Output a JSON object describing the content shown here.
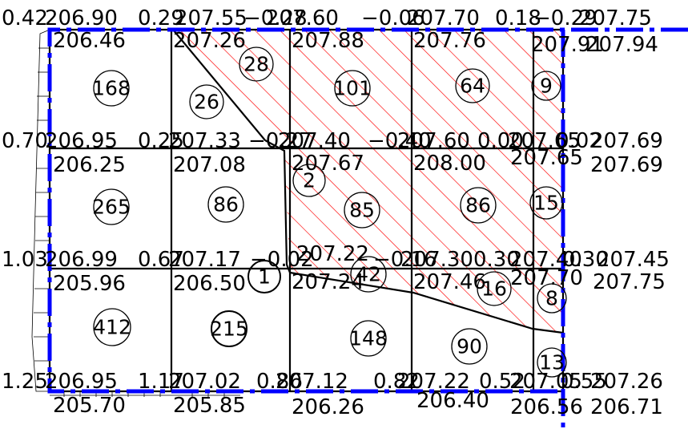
{
  "grid_labels": {
    "r1_design": [
      "0.42",
      "206.90",
      "0.29",
      "207.55",
      "−0.28",
      "207.60",
      "−0.06",
      "207.70",
      "0.18",
      "−0.29",
      "207.75"
    ],
    "r1_natural": [
      "206.46",
      "207.26",
      "207.88",
      "207.76",
      "207.91",
      "207.94"
    ],
    "r2_design": [
      "0.70",
      "206.95",
      "0.25",
      "207.33",
      "−0.27",
      "207.40",
      "−0.40",
      "207.60",
      "0.00",
      "207.65",
      "0.02",
      "207.69"
    ],
    "r2_natural": [
      "206.25",
      "207.08",
      "207.67",
      "208.00",
      "207.65",
      "207.69"
    ],
    "r3_design": [
      "1.03",
      "206.99",
      "0.67",
      "207.17",
      "−0.02",
      "207.22",
      "−0.16",
      "207.30",
      "0.30",
      "207.40",
      "0.30",
      "207.45"
    ],
    "r3_natural": [
      "205.96",
      "206.50",
      "207.24",
      "207.46",
      "207.70",
      "207.75"
    ],
    "r4_design": [
      "1.25",
      "206.95",
      "1.17",
      "207.02",
      "0.86",
      "207.12",
      "0.82",
      "207.22",
      "0.52",
      "207.05",
      "0.55",
      "207.26"
    ],
    "r4_natural": [
      "205.70",
      "205.85",
      "206.26",
      "206.40",
      "206.56",
      "206.71"
    ]
  },
  "cells": [
    "168",
    "26",
    "28",
    "101",
    "64",
    "9",
    "265",
    "86",
    "2",
    "85",
    "86",
    "15",
    "412",
    "215",
    "1",
    "42",
    "148",
    "16",
    "90",
    "8",
    "13"
  ],
  "colors": {
    "line": "#000000",
    "boundary": "#0000ff",
    "hatch": "#ff0000"
  }
}
